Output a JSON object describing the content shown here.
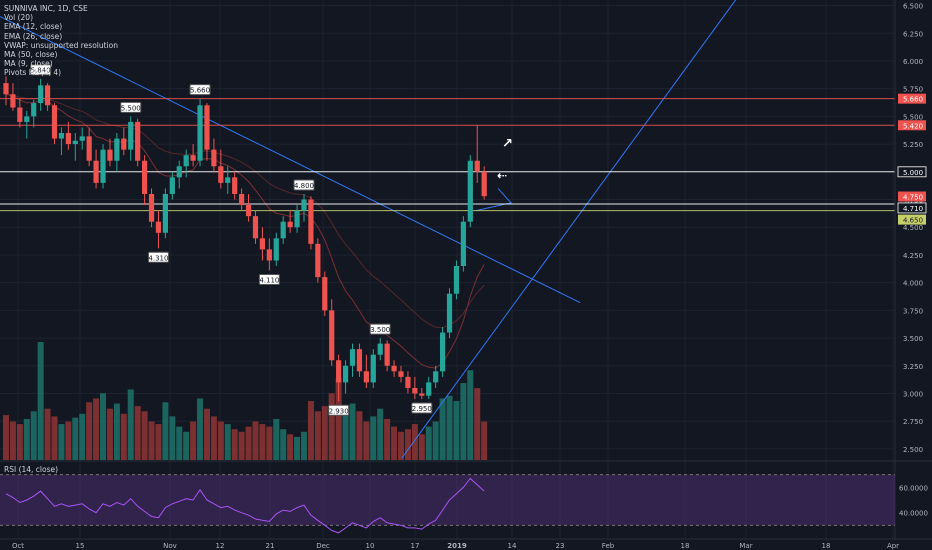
{
  "legend": {
    "title": "SUNNIVA INC, 1D, CSE",
    "vol": "Vol (20)",
    "ema12": "EMA (12, close)",
    "ema26": "EMA (26, close)",
    "vwap": "VWAP: unsupported resolution",
    "ma50": "MA (50, close)",
    "ma9": "MA (9, close)",
    "pivots": "Pivots HL (4, 4)"
  },
  "rsi_label": "RSI (14, close)",
  "colors": {
    "up": "#26a69a",
    "down": "#ef5350",
    "bg": "#131722",
    "trend": "#3179f5",
    "rsi_band": "#4a2d6e"
  },
  "chart_data": {
    "type": "candlestick",
    "title": "SUNNIVA INC, 1D, CSE",
    "ylim": [
      2.4,
      6.55
    ],
    "y_ticks": [
      "6.500",
      "6.250",
      "6.000",
      "5.750",
      "5.500",
      "5.250",
      "5.000",
      "4.750",
      "4.500",
      "4.250",
      "4.000",
      "3.750",
      "3.500",
      "3.250",
      "3.000",
      "2.750",
      "2.500"
    ],
    "x_ticks": [
      "Oct",
      "15",
      "Nov",
      "12",
      "21",
      "Dec",
      "10",
      "17",
      "2019",
      "14",
      "23",
      "Feb",
      "18",
      "Mar",
      "18",
      "Apr"
    ],
    "price_tags": [
      {
        "label": "5.660",
        "color": "#ef5350"
      },
      {
        "label": "5.420",
        "color": "#ef5350"
      },
      {
        "label": "5.000",
        "color": "#ffffff"
      },
      {
        "label": "4.750",
        "color": "#ef5350"
      },
      {
        "label": "4.710",
        "color": "#ffffff"
      },
      {
        "label": "4.650",
        "color": "#c6d06b"
      }
    ],
    "horizontal_levels": [
      {
        "value": 5.66,
        "color": "#ef5350"
      },
      {
        "value": 5.42,
        "color": "#ef5350"
      },
      {
        "value": 5.0,
        "color": "#ffffff"
      },
      {
        "value": 4.71,
        "color": "#ffffff"
      },
      {
        "value": 4.65,
        "color": "#c6d06b"
      }
    ],
    "pivot_labels": [
      {
        "label": "5.840",
        "value": 5.84,
        "i": 5,
        "pos": "high"
      },
      {
        "label": "5.500",
        "value": 5.5,
        "i": 18,
        "pos": "high"
      },
      {
        "label": "5.660",
        "value": 5.66,
        "i": 28,
        "pos": "high"
      },
      {
        "label": "4.310",
        "value": 4.31,
        "i": 22,
        "pos": "low"
      },
      {
        "label": "4.800",
        "value": 4.8,
        "i": 43,
        "pos": "high"
      },
      {
        "label": "4.110",
        "value": 4.11,
        "i": 38,
        "pos": "low"
      },
      {
        "label": "3.500",
        "value": 3.5,
        "i": 54,
        "pos": "high"
      },
      {
        "label": "2.930",
        "value": 2.93,
        "i": 48,
        "pos": "low"
      },
      {
        "label": "2.950",
        "value": 2.95,
        "i": 60,
        "pos": "low"
      }
    ],
    "candles": [
      [
        5.8,
        5.86,
        5.6,
        5.7
      ],
      [
        5.7,
        5.8,
        5.55,
        5.58
      ],
      [
        5.58,
        5.66,
        5.4,
        5.45
      ],
      [
        5.45,
        5.55,
        5.3,
        5.5
      ],
      [
        5.5,
        5.65,
        5.4,
        5.62
      ],
      [
        5.62,
        5.84,
        5.55,
        5.78
      ],
      [
        5.78,
        5.8,
        5.55,
        5.6
      ],
      [
        5.6,
        5.62,
        5.25,
        5.3
      ],
      [
        5.3,
        5.4,
        5.15,
        5.35
      ],
      [
        5.35,
        5.45,
        5.2,
        5.25
      ],
      [
        5.25,
        5.35,
        5.1,
        5.28
      ],
      [
        5.28,
        5.4,
        5.2,
        5.32
      ],
      [
        5.32,
        5.4,
        5.05,
        5.1
      ],
      [
        5.1,
        5.2,
        4.85,
        4.9
      ],
      [
        4.9,
        5.25,
        4.85,
        5.2
      ],
      [
        5.2,
        5.3,
        5.05,
        5.1
      ],
      [
        5.1,
        5.35,
        5.0,
        5.3
      ],
      [
        5.3,
        5.4,
        5.15,
        5.2
      ],
      [
        5.2,
        5.5,
        5.1,
        5.45
      ],
      [
        5.45,
        5.48,
        5.05,
        5.1
      ],
      [
        5.1,
        5.15,
        4.7,
        4.8
      ],
      [
        4.8,
        4.85,
        4.5,
        4.55
      ],
      [
        4.55,
        4.65,
        4.31,
        4.45
      ],
      [
        4.45,
        4.85,
        4.4,
        4.8
      ],
      [
        4.8,
        5.0,
        4.75,
        4.95
      ],
      [
        4.95,
        5.1,
        4.85,
        5.05
      ],
      [
        5.05,
        5.2,
        4.95,
        5.15
      ],
      [
        5.15,
        5.25,
        5.05,
        5.1
      ],
      [
        5.1,
        5.66,
        5.05,
        5.6
      ],
      [
        5.6,
        5.62,
        5.1,
        5.2
      ],
      [
        5.2,
        5.3,
        5.0,
        5.05
      ],
      [
        5.05,
        5.2,
        4.85,
        4.9
      ],
      [
        4.9,
        5.05,
        4.8,
        4.95
      ],
      [
        4.95,
        5.0,
        4.75,
        4.8
      ],
      [
        4.8,
        4.85,
        4.65,
        4.7
      ],
      [
        4.7,
        4.8,
        4.55,
        4.6
      ],
      [
        4.6,
        4.65,
        4.35,
        4.4
      ],
      [
        4.4,
        4.5,
        4.2,
        4.3
      ],
      [
        4.3,
        4.4,
        4.11,
        4.2
      ],
      [
        4.2,
        4.45,
        4.15,
        4.4
      ],
      [
        4.4,
        4.6,
        4.35,
        4.55
      ],
      [
        4.55,
        4.65,
        4.45,
        4.5
      ],
      [
        4.5,
        4.7,
        4.45,
        4.65
      ],
      [
        4.65,
        4.8,
        4.55,
        4.75
      ],
      [
        4.75,
        4.78,
        4.3,
        4.35
      ],
      [
        4.35,
        4.4,
        4.0,
        4.05
      ],
      [
        4.05,
        4.1,
        3.7,
        3.75
      ],
      [
        3.75,
        3.85,
        3.25,
        3.3
      ],
      [
        3.3,
        3.35,
        2.93,
        3.1
      ],
      [
        3.1,
        3.3,
        3.0,
        3.25
      ],
      [
        3.25,
        3.45,
        3.15,
        3.4
      ],
      [
        3.4,
        3.45,
        3.15,
        3.2
      ],
      [
        3.2,
        3.35,
        3.05,
        3.1
      ],
      [
        3.1,
        3.4,
        3.05,
        3.35
      ],
      [
        3.35,
        3.5,
        3.3,
        3.45
      ],
      [
        3.45,
        3.48,
        3.2,
        3.25
      ],
      [
        3.25,
        3.3,
        3.15,
        3.2
      ],
      [
        3.2,
        3.25,
        3.1,
        3.15
      ],
      [
        3.15,
        3.2,
        3.0,
        3.05
      ],
      [
        3.05,
        3.15,
        2.95,
        3.0
      ],
      [
        3.0,
        3.05,
        2.95,
        2.98
      ],
      [
        2.98,
        3.15,
        2.95,
        3.1
      ],
      [
        3.1,
        3.25,
        3.05,
        3.2
      ],
      [
        3.2,
        3.6,
        3.15,
        3.55
      ],
      [
        3.55,
        3.95,
        3.5,
        3.9
      ],
      [
        3.9,
        4.2,
        3.85,
        4.15
      ],
      [
        4.15,
        4.6,
        4.1,
        4.55
      ],
      [
        4.55,
        5.15,
        4.5,
        5.1
      ],
      [
        5.1,
        5.42,
        4.9,
        5.0
      ],
      [
        5.0,
        5.05,
        4.75,
        4.78
      ]
    ],
    "volume": [
      35,
      30,
      28,
      32,
      38,
      92,
      40,
      34,
      28,
      30,
      33,
      36,
      45,
      48,
      52,
      40,
      44,
      36,
      55,
      42,
      38,
      30,
      28,
      45,
      34,
      26,
      22,
      30,
      48,
      40,
      34,
      30,
      28,
      24,
      22,
      26,
      30,
      28,
      26,
      32,
      24,
      20,
      18,
      22,
      46,
      38,
      42,
      52,
      64,
      40,
      44,
      38,
      30,
      34,
      40,
      32,
      26,
      22,
      24,
      28,
      20,
      26,
      30,
      48,
      50,
      46,
      60,
      70,
      56,
      30
    ],
    "rsi_range": [
      30,
      70
    ],
    "rsi_ticks": [
      "60.0000",
      "40.0000"
    ],
    "rsi": [
      55,
      52,
      48,
      50,
      53,
      57,
      51,
      45,
      47,
      45,
      46,
      47,
      43,
      40,
      47,
      45,
      48,
      46,
      51,
      45,
      41,
      37,
      36,
      44,
      47,
      49,
      51,
      50,
      58,
      50,
      47,
      44,
      45,
      42,
      40,
      38,
      35,
      34,
      33,
      39,
      42,
      41,
      44,
      46,
      38,
      34,
      30,
      26,
      24,
      28,
      32,
      30,
      28,
      33,
      36,
      32,
      31,
      30,
      28,
      28,
      27,
      31,
      34,
      42,
      50,
      55,
      60,
      67,
      62,
      57
    ]
  }
}
